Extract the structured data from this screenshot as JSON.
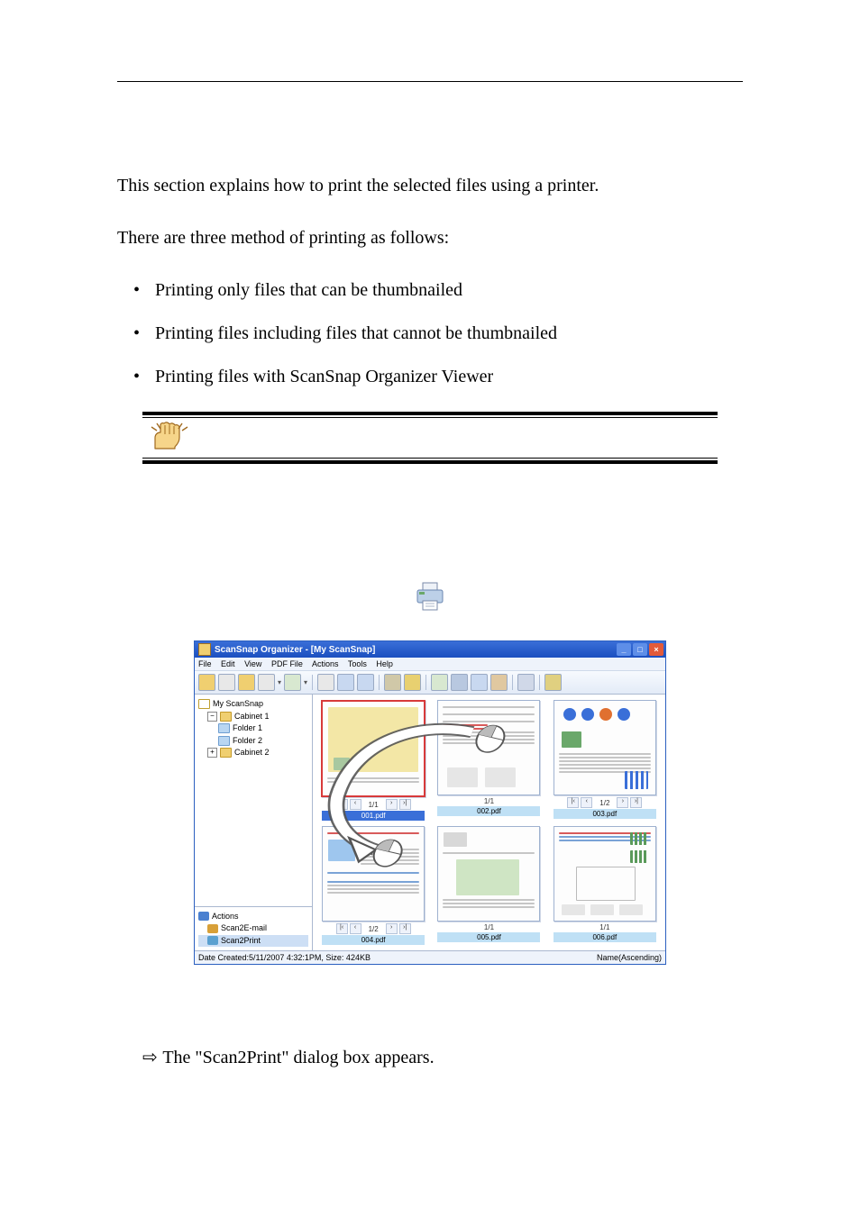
{
  "intro": "This section explains how to print the selected files using a printer.",
  "methods_lead": "There are three method of printing as follows:",
  "bullets": [
    "Printing only files that can be thumbnailed",
    "Printing files including files that cannot be thumbnailed",
    "Printing files with ScanSnap Organizer Viewer"
  ],
  "result_text": "The \"Scan2Print\" dialog box appears.",
  "screenshot": {
    "title": "ScanSnap Organizer - [My ScanSnap]",
    "menus": [
      "File",
      "Edit",
      "View",
      "PDF File",
      "Actions",
      "Tools",
      "Help"
    ],
    "toolbar_colors": [
      "#f0cf70",
      "#e8e8e8",
      "#f0cf70",
      "#e8e8e8",
      "#d8e8d0",
      "#e8e8e8",
      "#c8d8f0",
      "#c8d8f0",
      "#d0c8a8",
      "#e8d070",
      "#d8e8d0",
      "#b8c8e0",
      "#c8d8f0",
      "#e0c8a0",
      "#d0d8e8",
      "#e0d080",
      "#c8d8f0"
    ],
    "tree": {
      "root": "My ScanSnap",
      "cabinet1": "Cabinet 1",
      "folder1": "Folder 1",
      "folder2": "Folder 2",
      "cabinet2": "Cabinet 2"
    },
    "actions": {
      "header": "Actions",
      "email": "Scan2E-mail",
      "print": "Scan2Print",
      "email_color": "#d8a038",
      "print_color": "#5aa0d0",
      "header_color": "#4a80d0"
    },
    "thumbs": [
      {
        "page": "1/1",
        "name": "001.pdf",
        "selected": true,
        "nav": true
      },
      {
        "page": "1/1",
        "name": "002.pdf",
        "selected": false,
        "nav": false
      },
      {
        "page": "1/2",
        "name": "003.pdf",
        "selected": false,
        "nav": true
      },
      {
        "page": "1/2",
        "name": "004.pdf",
        "selected": false,
        "nav": true
      },
      {
        "page": "1/1",
        "name": "005.pdf",
        "selected": false,
        "nav": false
      },
      {
        "page": "1/1",
        "name": "006.pdf",
        "selected": false,
        "nav": false
      }
    ],
    "status_left": "Date Created:5/11/2007 4:32:1PM, Size: 424KB",
    "status_right": "Name(Ascending)",
    "window_buttons": {
      "min": "_",
      "max": "□",
      "close": "×"
    },
    "colors": {
      "titlebar_from": "#3a6fd8",
      "titlebar_to": "#1b4fc0",
      "selection": "#d83a3a",
      "label_sel_bg": "#3a6fd8",
      "label_bg": "#bfe0f5"
    }
  }
}
